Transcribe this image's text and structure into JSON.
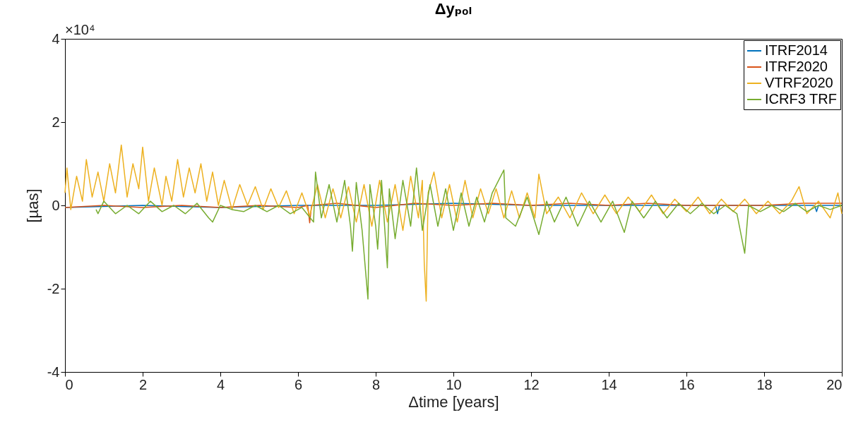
{
  "chart_data": {
    "type": "line",
    "title": "Δyₚₒₗ",
    "xlabel": "Δtime [years]",
    "ylabel": "[µas]",
    "annotations": [
      "×10⁴"
    ],
    "xlim": [
      0,
      20
    ],
    "ylim": [
      -4,
      4
    ],
    "xticks": [
      0,
      2,
      4,
      6,
      8,
      10,
      12,
      14,
      16,
      18,
      20
    ],
    "yticks": [
      -4,
      -2,
      0,
      2,
      4
    ],
    "legend": "top right",
    "series": [
      {
        "name": "ITRF2014",
        "color": "#0072bd",
        "x": [
          0,
          2,
          4,
          6,
          8,
          10,
          12,
          14,
          16,
          16.75,
          16.8,
          16.85,
          18,
          19.3,
          19.35,
          19.4,
          20
        ],
        "values": [
          -0.05,
          0,
          -0.05,
          0,
          0,
          0.05,
          0,
          0,
          0,
          0,
          -0.2,
          0,
          0,
          0,
          -0.15,
          0,
          0
        ]
      },
      {
        "name": "ITRF2020",
        "color": "#d95319",
        "x": [
          0,
          1,
          2,
          3,
          4,
          5,
          6,
          6.25,
          6.3,
          6.35,
          7,
          8,
          9,
          10,
          11,
          12,
          13,
          14,
          15,
          16,
          17,
          18,
          19,
          20
        ],
        "values": [
          -0.05,
          0,
          -0.05,
          0,
          -0.05,
          0,
          -0.05,
          0,
          -0.42,
          0,
          0.05,
          -0.05,
          0.05,
          0,
          0.05,
          0,
          0.05,
          0,
          0.05,
          0,
          0,
          0,
          0.05,
          0.05
        ]
      },
      {
        "name": "VTRF2020",
        "color": "#edb120",
        "x": [
          0,
          0.05,
          0.15,
          0.3,
          0.45,
          0.55,
          0.7,
          0.85,
          1,
          1.15,
          1.3,
          1.45,
          1.6,
          1.75,
          1.9,
          2,
          2.15,
          2.3,
          2.5,
          2.6,
          2.75,
          2.9,
          3.05,
          3.2,
          3.35,
          3.5,
          3.65,
          3.8,
          3.95,
          4.1,
          4.3,
          4.5,
          4.7,
          4.9,
          5.1,
          5.3,
          5.5,
          5.7,
          5.9,
          6.1,
          6.3,
          6.5,
          6.7,
          6.9,
          7.1,
          7.3,
          7.5,
          7.7,
          7.9,
          8.1,
          8.3,
          8.5,
          8.7,
          8.9,
          9.1,
          9.2,
          9.25,
          9.3,
          9.35,
          9.5,
          9.7,
          9.9,
          10.1,
          10.3,
          10.5,
          10.7,
          10.9,
          11.1,
          11.3,
          11.5,
          11.7,
          11.9,
          12.1,
          12.2,
          12.4,
          12.7,
          13,
          13.3,
          13.6,
          13.9,
          14.2,
          14.5,
          14.8,
          15.1,
          15.4,
          15.7,
          16,
          16.3,
          16.6,
          16.9,
          17.2,
          17.5,
          17.8,
          18.1,
          18.4,
          18.7,
          18.9,
          19.1,
          19.4,
          19.7,
          19.9,
          20
        ],
        "values": [
          0.3,
          0.9,
          -0.1,
          0.7,
          0.1,
          1.1,
          0.2,
          0.8,
          0.1,
          1,
          0.3,
          1.45,
          0.2,
          1,
          0.4,
          1.4,
          0.1,
          0.9,
          0,
          0.7,
          0.1,
          1.1,
          0.2,
          0.9,
          0.3,
          1,
          0.1,
          0.8,
          0,
          0.6,
          -0.1,
          0.5,
          0,
          0.45,
          -0.1,
          0.4,
          -0.05,
          0.35,
          -0.2,
          0.3,
          -0.25,
          0.5,
          -0.3,
          0.4,
          -0.3,
          0.45,
          -0.4,
          0.5,
          -0.5,
          0.6,
          -0.4,
          0.5,
          -0.6,
          0.7,
          -0.3,
          0.6,
          -1.4,
          -2.3,
          0.3,
          0.8,
          -0.3,
          0.5,
          -0.4,
          0.6,
          -0.3,
          0.4,
          -0.2,
          0.4,
          -0.3,
          0.35,
          -0.3,
          0.3,
          -0.3,
          0.75,
          -0.2,
          0.2,
          -0.3,
          0.3,
          -0.2,
          0.25,
          -0.2,
          0.2,
          -0.15,
          0.25,
          -0.2,
          0.15,
          -0.15,
          0.2,
          -0.2,
          0.15,
          -0.15,
          0.15,
          -0.2,
          0.1,
          -0.2,
          0.1,
          0.45,
          -0.2,
          0.1,
          -0.3,
          0.3,
          -0.2
        ]
      },
      {
        "name": "ICRF3 TRF",
        "color": "#77ac30",
        "x": [
          0.8,
          0.85,
          1,
          1.3,
          1.6,
          1.9,
          2.2,
          2.5,
          2.8,
          3.1,
          3.4,
          3.7,
          3.8,
          4,
          4.3,
          4.6,
          4.9,
          5.2,
          5.5,
          5.8,
          6.1,
          6.4,
          6.45,
          6.6,
          6.8,
          7,
          7.2,
          7.35,
          7.4,
          7.5,
          7.65,
          7.8,
          7.85,
          8,
          8.05,
          8.15,
          8.3,
          8.35,
          8.5,
          8.7,
          8.9,
          9.05,
          9.2,
          9.4,
          9.6,
          9.8,
          10,
          10.2,
          10.4,
          10.6,
          10.8,
          11,
          11.3,
          11.35,
          11.6,
          11.9,
          12.2,
          12.4,
          12.6,
          12.9,
          13.2,
          13.5,
          13.8,
          14.1,
          14.4,
          14.6,
          14.9,
          15.2,
          15.5,
          15.8,
          16.1,
          16.4,
          16.7,
          17,
          17.3,
          17.5,
          17.6,
          17.9,
          18.2,
          18.5,
          18.8,
          19.1,
          19.4,
          19.7,
          20
        ],
        "values": [
          -0.1,
          -0.2,
          0.1,
          -0.2,
          0,
          -0.2,
          0.1,
          -0.15,
          0,
          -0.2,
          0.05,
          -0.3,
          -0.4,
          0,
          -0.1,
          -0.15,
          0,
          -0.15,
          0,
          -0.2,
          -0.05,
          -0.4,
          0.8,
          -0.3,
          0.5,
          -0.4,
          0.6,
          -0.5,
          -1.1,
          0.55,
          -0.6,
          -2.25,
          0.5,
          -0.5,
          -1.05,
          0.6,
          -1.5,
          0.4,
          -0.8,
          0.6,
          -0.5,
          0.9,
          -0.6,
          0.5,
          -0.5,
          0.4,
          -0.6,
          0.3,
          -0.5,
          0.2,
          -0.4,
          0.3,
          0.85,
          -0.3,
          -0.5,
          0.2,
          -0.7,
          0.1,
          -0.4,
          0.2,
          -0.5,
          0.1,
          -0.4,
          0.1,
          -0.65,
          0.1,
          -0.3,
          0.1,
          -0.3,
          0.05,
          -0.2,
          0.05,
          -0.2,
          0,
          -0.2,
          -1.15,
          0,
          -0.15,
          0,
          -0.15,
          0.05,
          -0.15,
          0,
          -0.1,
          0
        ]
      }
    ]
  }
}
